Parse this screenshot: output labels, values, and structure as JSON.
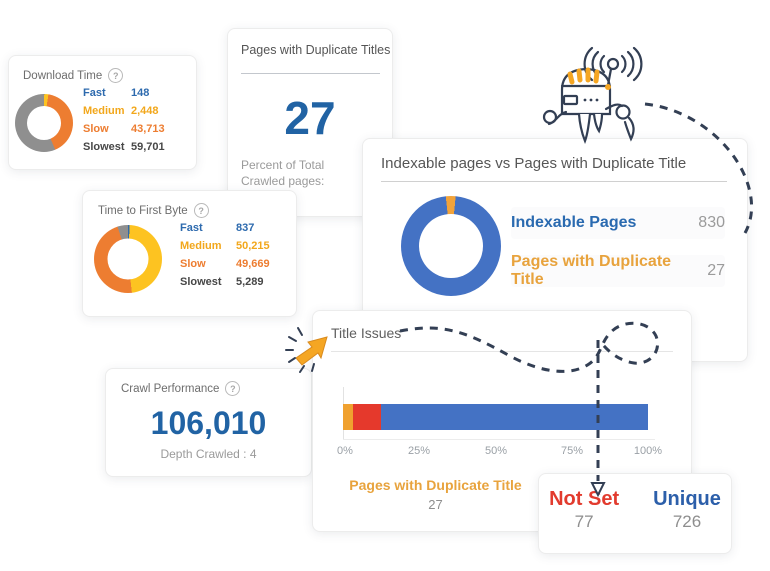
{
  "colors": {
    "blue": "#4472c4",
    "dark_blue_text": "#2163a4",
    "fast_blue": "#2d6aae",
    "yellow": "#fdc321",
    "medium_yellow": "#f2a71b",
    "orange": "#ed7d31",
    "amber": "#e8a33d",
    "slice_amber": "#f2a33a",
    "red": "#e5392c",
    "red_text": "#e23b2e",
    "unique_blue": "#2c5faa",
    "gray_slice": "#8f8f8f",
    "dark_label": "#474747",
    "value_gray": "#9b9b9b",
    "line_navy": "#333f54"
  },
  "cards": {
    "download_time": {
      "title": "Download Time",
      "help": "?",
      "donut": {
        "from": 0,
        "segments": [
          {
            "label": "Fast",
            "value": "148",
            "pct": 0.14,
            "color": "#2d6aae"
          },
          {
            "label": "Medium",
            "value": "2,448",
            "pct": 2.31,
            "color": "#fdc321"
          },
          {
            "label": "Slow",
            "value": "43,713",
            "pct": 41.23,
            "color": "#ed7d31"
          },
          {
            "label": "Slowest",
            "value": "59,701",
            "pct": 56.32,
            "color": "#8f8f8f"
          }
        ]
      },
      "legend": [
        {
          "label": "Fast",
          "value": "148",
          "label_color": "#2d6aae",
          "value_color": "#2d6aae"
        },
        {
          "label": "Medium",
          "value": "2,448",
          "label_color": "#f2a71b",
          "value_color": "#f2a71b"
        },
        {
          "label": "Slow",
          "value": "43,713",
          "label_color": "#ed7d31",
          "value_color": "#ed7d31"
        },
        {
          "label": "Slowest",
          "value": "59,701",
          "label_color": "#474747",
          "value_color": "#474747"
        }
      ]
    },
    "duplicate_titles": {
      "title": "Pages with Duplicate Titles",
      "value": "27",
      "subtitle_line1": "Percent of Total",
      "subtitle_line2": "Crawled pages:"
    },
    "ttfb": {
      "title": "Time to First Byte",
      "help": "?",
      "donut": {
        "from": 0,
        "segments": [
          {
            "label": "Fast",
            "value": "837",
            "pct": 0.79,
            "color": "#2d6aae"
          },
          {
            "label": "Medium",
            "value": "50,215",
            "pct": 47.37,
            "color": "#fdc321"
          },
          {
            "label": "Slow",
            "value": "49,669",
            "pct": 46.85,
            "color": "#ed7d31"
          },
          {
            "label": "Slowest",
            "value": "5,289",
            "pct": 4.99,
            "color": "#8f8f8f"
          }
        ]
      },
      "legend": [
        {
          "label": "Fast",
          "value": "837",
          "label_color": "#2d6aae",
          "value_color": "#2d6aae"
        },
        {
          "label": "Medium",
          "value": "50,215",
          "label_color": "#f2a71b",
          "value_color": "#f2a71b"
        },
        {
          "label": "Slow",
          "value": "49,669",
          "label_color": "#ed7d31",
          "value_color": "#ed7d31"
        },
        {
          "label": "Slowest",
          "value": "5,289",
          "label_color": "#474747",
          "value_color": "#474747"
        }
      ]
    },
    "indexable": {
      "title": "Indexable pages vs Pages with Duplicate Title",
      "donut": {
        "from": -6,
        "segments": [
          {
            "label": "Pages with Duplicate Title",
            "value": "27",
            "pct": 3.15,
            "color": "#f2a33a"
          },
          {
            "label": "Indexable Pages",
            "value": "830",
            "pct": 96.85,
            "color": "#4472c4"
          }
        ]
      },
      "rows": [
        {
          "label": "Indexable Pages",
          "value": "830",
          "label_color": "#2a6ab0",
          "value_color": "#9b9b9b"
        },
        {
          "label": "Pages with Duplicate Title",
          "value": "27",
          "label_color": "#e8a33d",
          "value_color": "#9b9b9b"
        }
      ]
    },
    "crawl_performance": {
      "title": "Crawl Performance",
      "help": "?",
      "value": "106,010",
      "subtitle": "Depth Crawled : 4"
    },
    "title_issues": {
      "title": "Title Issues",
      "bar": {
        "segments": [
          {
            "label": "Pages with Duplicate Title",
            "value": "27",
            "pct": 3.25,
            "color": "#f0a12f"
          },
          {
            "label": "Not Set",
            "value": "77",
            "pct": 9.28,
            "color": "#e5392c"
          },
          {
            "label": "Unique",
            "value": "726",
            "pct": 87.47,
            "color": "#4472c4"
          }
        ]
      },
      "ticks": [
        "0%",
        "25%",
        "50%",
        "75%",
        "100%"
      ],
      "footer_label": "Pages with Duplicate Title",
      "footer_value": "27"
    },
    "not_set_unique": {
      "items": [
        {
          "label": "Not Set",
          "value": "77",
          "label_color": "#e23b2e"
        },
        {
          "label": "Unique",
          "value": "726",
          "label_color": "#2c5faa"
        }
      ]
    }
  }
}
